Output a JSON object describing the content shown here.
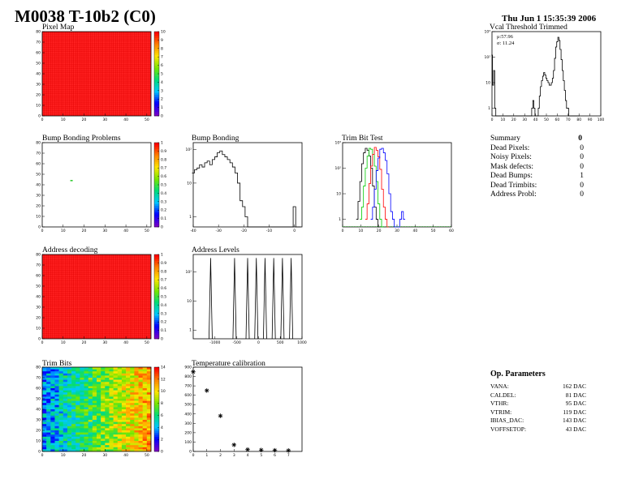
{
  "header": {
    "title": "M0038 T-10b2 (C0)",
    "date": "Thu Jun  1 15:35:39 2006"
  },
  "panels": {
    "pixel_map": {
      "title": "Pixel Map"
    },
    "vcal": {
      "title": "Vcal Threshold Trimmed",
      "mu": "μ:57.96",
      "sigma": "σ: 11.24"
    },
    "bump_problems": {
      "title": "Bump Bonding Problems"
    },
    "bump_bonding": {
      "title": "Bump Bonding"
    },
    "trim_test": {
      "title": "Trim Bit Test"
    },
    "address_decoding": {
      "title": "Address decoding"
    },
    "address_levels": {
      "title": "Address Levels"
    },
    "trim_bits": {
      "title": "Trim Bits"
    },
    "temp_cal": {
      "title": "Temperature calibration"
    }
  },
  "summary": {
    "header_label": "Summary",
    "header_value": "0",
    "rows": [
      {
        "label": "Dead Pixels:",
        "value": "0"
      },
      {
        "label": "Noisy Pixels:",
        "value": "0"
      },
      {
        "label": "Mask defects:",
        "value": "0"
      },
      {
        "label": "Dead Bumps:",
        "value": "1"
      },
      {
        "label": "Dead Trimbits:",
        "value": "0"
      },
      {
        "label": "Address Probl:",
        "value": "0"
      }
    ]
  },
  "op_params": {
    "header": "Op. Parameters",
    "rows": [
      {
        "label": "VANA:",
        "value": "162 DAC"
      },
      {
        "label": "CALDEL:",
        "value": "81 DAC"
      },
      {
        "label": "VTHR:",
        "value": "95 DAC"
      },
      {
        "label": "VTRIM:",
        "value": "119 DAC"
      },
      {
        "label": "IBIAS_DAC:",
        "value": "143 DAC"
      },
      {
        "label": "VOFFSETOP:",
        "value": "43 DAC"
      }
    ]
  },
  "chart_data": [
    {
      "id": "pixel_map",
      "type": "heatmap",
      "xlim": [
        0,
        52
      ],
      "ylim": [
        0,
        80
      ],
      "xticks": [
        "0",
        "10",
        "20",
        "30",
        "40",
        "50"
      ],
      "yticks": [
        "0",
        "10",
        "20",
        "30",
        "40",
        "50",
        "60",
        "70",
        "80"
      ],
      "fill": "uniform",
      "value": 10,
      "zlim": [
        0,
        10
      ],
      "colorbar_ticks": [
        "0",
        "1",
        "2",
        "3",
        "4",
        "5",
        "6",
        "7",
        "8",
        "9",
        "10"
      ]
    },
    {
      "id": "vcal",
      "type": "line",
      "log_y": true,
      "xlim": [
        0,
        100
      ],
      "xticks": [
        "0",
        "10",
        "20",
        "30",
        "40",
        "50",
        "60",
        "70",
        "80",
        "90",
        "100"
      ],
      "yticks": [
        "1",
        "10",
        "10²",
        "10³"
      ],
      "x": [
        0,
        1,
        2,
        3,
        4,
        5,
        6,
        7,
        8,
        9,
        10,
        11,
        12,
        13,
        14,
        15,
        16,
        17,
        18,
        19,
        20,
        21,
        22,
        23,
        24,
        25,
        26,
        27,
        28,
        29,
        30,
        31,
        32,
        33,
        34,
        35,
        36,
        37,
        38,
        39,
        40,
        41,
        42,
        43,
        44,
        45,
        46,
        47,
        48,
        49,
        50,
        51,
        52,
        53,
        54,
        55,
        56,
        57,
        58,
        59,
        60,
        61,
        62,
        63,
        64,
        65,
        66,
        67,
        68,
        69,
        70,
        71,
        72,
        73,
        74,
        75,
        76,
        77,
        78,
        79,
        80
      ],
      "y": [
        120,
        8,
        30,
        1,
        0,
        0,
        0,
        0,
        0,
        0,
        0,
        0,
        0,
        0,
        0,
        0,
        0,
        0,
        0,
        0,
        0,
        0,
        0,
        0,
        0,
        0,
        0,
        0,
        0,
        0,
        0,
        0,
        0,
        0,
        0,
        0,
        0,
        1,
        2,
        1,
        0,
        0,
        0,
        1,
        3,
        7,
        12,
        18,
        25,
        20,
        15,
        12,
        10,
        8,
        8,
        10,
        15,
        30,
        90,
        250,
        400,
        600,
        450,
        200,
        80,
        30,
        12,
        5,
        2,
        1,
        1,
        0,
        0,
        0,
        0,
        0,
        0,
        0,
        0,
        0,
        0
      ]
    },
    {
      "id": "bump_problems",
      "type": "heatmap",
      "xlim": [
        0,
        52
      ],
      "ylim": [
        0,
        80
      ],
      "xticks": [
        "0",
        "10",
        "20",
        "30",
        "40",
        "50"
      ],
      "yticks": [
        "0",
        "10",
        "20",
        "30",
        "40",
        "50",
        "60",
        "70",
        "80"
      ],
      "fill": "empty",
      "points": [
        {
          "x": 14,
          "y": 44
        }
      ],
      "zlim": [
        0,
        1
      ],
      "colorbar_ticks": [
        "0",
        "0.1",
        "0.2",
        "0.3",
        "0.4",
        "0.5",
        "0.6",
        "0.7",
        "0.8",
        "0.9",
        "1"
      ]
    },
    {
      "id": "bump_bonding",
      "type": "line",
      "log_y": true,
      "xlim": [
        -40,
        3
      ],
      "xticks": [
        "-40",
        "-30",
        "-20",
        "-10",
        "0"
      ],
      "yticks": [
        "1",
        "10",
        "10²"
      ],
      "x": [
        -40,
        -39,
        -38,
        -37,
        -36,
        -35,
        -34,
        -33,
        -32,
        -31,
        -30,
        -29,
        -28,
        -27,
        -26,
        -25,
        -24,
        -23,
        -22,
        -21,
        -20,
        -19,
        -18,
        -17,
        -16,
        -15,
        -14,
        -13,
        -12,
        -11,
        -10,
        -9,
        -8,
        -7,
        -6,
        -5,
        -4,
        -3,
        -2,
        -1,
        0,
        1,
        2
      ],
      "y": [
        20,
        25,
        28,
        35,
        30,
        40,
        45,
        35,
        50,
        60,
        80,
        90,
        70,
        60,
        50,
        40,
        30,
        20,
        10,
        3,
        2,
        1,
        0,
        0,
        0,
        0,
        0,
        0,
        0,
        0,
        0,
        0,
        0,
        0,
        0,
        0,
        0,
        0,
        0,
        0,
        2,
        0,
        0
      ]
    },
    {
      "id": "trim_test",
      "type": "line",
      "log_y": true,
      "xlim": [
        0,
        60
      ],
      "xticks": [
        "0",
        "10",
        "20",
        "30",
        "40",
        "50",
        "60"
      ],
      "yticks": [
        "1",
        "10",
        "10²",
        "10³"
      ],
      "series": [
        {
          "color": "#000000",
          "x": [
            8,
            9,
            10,
            11,
            12,
            13,
            14,
            15,
            16,
            17,
            18,
            19,
            20
          ],
          "y": [
            1,
            5,
            30,
            150,
            400,
            600,
            500,
            300,
            100,
            20,
            3,
            1,
            0
          ]
        },
        {
          "color": "#00cc00",
          "x": [
            10,
            11,
            12,
            13,
            14,
            15,
            16,
            17,
            18,
            19,
            20,
            21,
            22
          ],
          "y": [
            1,
            3,
            20,
            100,
            300,
            600,
            550,
            350,
            120,
            30,
            4,
            1,
            0
          ]
        },
        {
          "color": "#ff0000",
          "x": [
            13,
            14,
            15,
            16,
            17,
            18,
            19,
            20,
            21,
            22,
            23,
            24,
            25
          ],
          "y": [
            1,
            4,
            25,
            120,
            350,
            650,
            500,
            280,
            90,
            15,
            3,
            1,
            0
          ]
        },
        {
          "color": "#0000ff",
          "x": [
            16,
            17,
            18,
            19,
            20,
            21,
            22,
            23,
            24,
            25,
            26,
            27,
            28,
            29,
            30,
            31,
            32,
            33,
            34
          ],
          "y": [
            1,
            3,
            15,
            80,
            250,
            550,
            600,
            400,
            200,
            60,
            10,
            2,
            1,
            0,
            0,
            0,
            1,
            2,
            1
          ]
        }
      ]
    },
    {
      "id": "address_decoding",
      "type": "heatmap",
      "xlim": [
        0,
        52
      ],
      "ylim": [
        0,
        80
      ],
      "xticks": [
        "0",
        "10",
        "20",
        "30",
        "40",
        "50"
      ],
      "yticks": [
        "0",
        "10",
        "20",
        "30",
        "40",
        "50",
        "60",
        "70",
        "80"
      ],
      "fill": "uniform",
      "value": 1,
      "zlim": [
        0,
        1
      ],
      "colorbar_ticks": [
        "0",
        "0.1",
        "0.2",
        "0.3",
        "0.4",
        "0.5",
        "0.6",
        "0.7",
        "0.8",
        "0.9",
        "1"
      ]
    },
    {
      "id": "address_levels",
      "type": "line",
      "log_y": true,
      "xlim": [
        -1500,
        1000
      ],
      "xticks": [
        "-1000",
        "-500",
        "0",
        "500",
        "1000"
      ],
      "yticks": [
        "1",
        "10",
        "10²"
      ],
      "peaks": [
        -1100,
        -550,
        -250,
        -50,
        150,
        350,
        550,
        750
      ],
      "peak_value": 300
    },
    {
      "id": "trim_bits",
      "type": "heatmap",
      "xlim": [
        0,
        52
      ],
      "ylim": [
        0,
        80
      ],
      "xticks": [
        "0",
        "10",
        "20",
        "30",
        "40",
        "50"
      ],
      "yticks": [
        "0",
        "10",
        "20",
        "30",
        "40",
        "50",
        "60",
        "70",
        "80"
      ],
      "fill": "gradient",
      "zlim": [
        0,
        15
      ],
      "colorbar_ticks": [
        "0",
        "2",
        "4",
        "6",
        "8",
        "10",
        "12",
        "14"
      ]
    },
    {
      "id": "temp_cal",
      "type": "scatter",
      "xlim": [
        0,
        8
      ],
      "ylim": [
        0,
        900
      ],
      "xticks": [
        "0",
        "1",
        "2",
        "3",
        "4",
        "5",
        "6",
        "7"
      ],
      "yticks": [
        "0",
        "100",
        "200",
        "300",
        "400",
        "500",
        "600",
        "700",
        "800",
        "900"
      ],
      "x": [
        0,
        1,
        2,
        3,
        4,
        5,
        6,
        7
      ],
      "y": [
        850,
        650,
        380,
        70,
        20,
        15,
        12,
        10
      ]
    }
  ]
}
